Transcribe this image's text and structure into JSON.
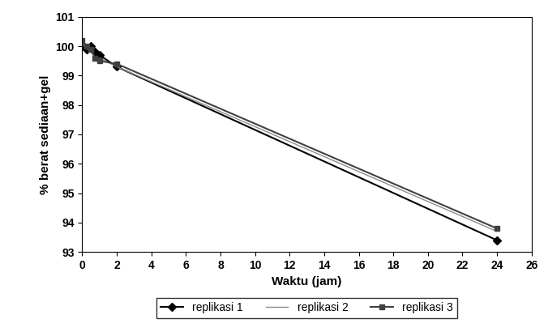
{
  "chart_data": {
    "type": "line",
    "x_label": "Waktu (jam)",
    "y_label": "% berat sediaan+gel",
    "x": [
      0,
      0.25,
      0.5,
      0.75,
      1,
      2,
      24
    ],
    "series": [
      {
        "name": "replikasi 1",
        "color": "#000000",
        "marker": "diamond",
        "line_style": "solid",
        "values": [
          100.0,
          99.9,
          100.0,
          99.8,
          99.7,
          99.3,
          93.4
        ]
      },
      {
        "name": "replikasi 2",
        "color": "#8c8c8c",
        "marker": "none",
        "line_style": "solid",
        "values": [
          100.1,
          99.9,
          99.9,
          99.5,
          99.6,
          99.3,
          93.7
        ]
      },
      {
        "name": "replikasi 3",
        "color": "#404040",
        "marker": "square",
        "line_style": "solid",
        "values": [
          100.2,
          100.0,
          99.9,
          99.6,
          99.5,
          99.4,
          93.8
        ]
      }
    ],
    "xlim": [
      0,
      26
    ],
    "xticks": [
      0,
      2,
      4,
      6,
      8,
      10,
      12,
      14,
      16,
      18,
      20,
      22,
      24,
      26
    ],
    "ylim": [
      93,
      101
    ],
    "yticks": [
      93,
      94,
      95,
      96,
      97,
      98,
      99,
      100,
      101
    ],
    "grid": false,
    "legend": "bottom"
  }
}
